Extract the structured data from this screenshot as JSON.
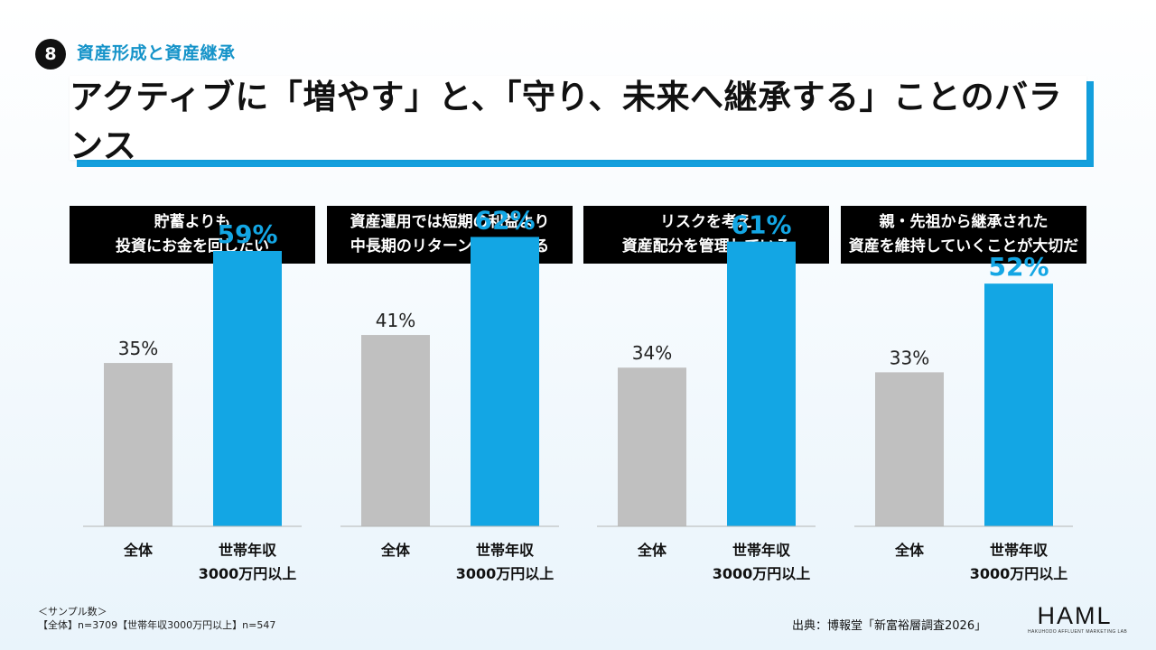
{
  "section": {
    "number": "8",
    "title": "資産形成と資産継承"
  },
  "headline": "アクティブに「増やす」と、「守り、未来へ継承する」ことのバランス",
  "chart_data": {
    "type": "bar",
    "categories": [
      "全体",
      "世帯年収\n3000万円以上"
    ],
    "ylim": [
      0,
      80
    ],
    "colors": {
      "全体": "#c0c0c0",
      "世帯年収3000万円以上": "#13a6e4"
    },
    "panels": [
      {
        "title": [
          "貯蓄よりも",
          "投資にお金を回したい"
        ],
        "values": [
          35,
          59
        ],
        "labels": [
          "35%",
          "59%"
        ]
      },
      {
        "title": [
          "資産運用では短期の利益より",
          "中長期のリターンを重視する"
        ],
        "values": [
          41,
          62
        ],
        "labels": [
          "41%",
          "62%"
        ]
      },
      {
        "title": [
          "リスクを考え",
          "資産配分を管理している"
        ],
        "values": [
          34,
          61
        ],
        "labels": [
          "34%",
          "61%"
        ]
      },
      {
        "title": [
          "親・先祖から継承された",
          "資産を維持していくことが大切だ"
        ],
        "values": [
          33,
          52
        ],
        "labels": [
          "33%",
          "52%"
        ]
      }
    ]
  },
  "footnote": {
    "line1": "＜サンプル数＞",
    "line2": "【全体】n=3709【世帯年収3000万円以上】n=547"
  },
  "source": "出典：博報堂「新富裕層調査2026」",
  "logo": {
    "word": "HAML",
    "sub": "HAKUHODO AFFLUENT MARKETING LAB"
  }
}
